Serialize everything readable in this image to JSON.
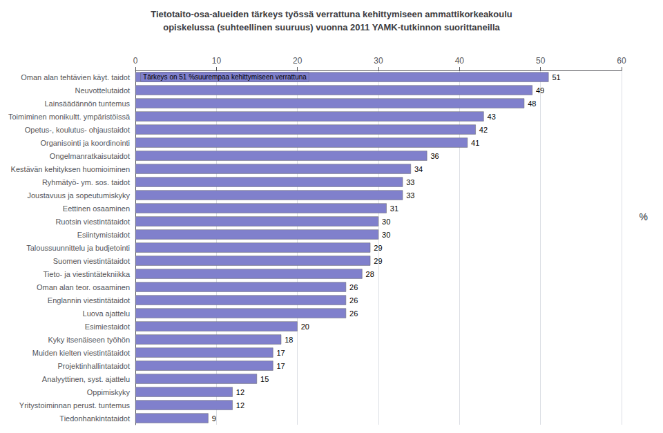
{
  "chart_data": {
    "type": "bar",
    "orientation": "horizontal",
    "title": "Tietotaito-osa-alueiden tärkeys työssä verrattuna kehittymiseen ammattikorkeakoulu\nopiskelussa (suhteellinen suuruus) vuonna 2011 YAMK-tutkinnon suorittaneilla",
    "categories": [
      "Oman alan tehtävien käyt. taidot",
      "Neuvottelutaidot",
      "Lainsäädännön tuntemus",
      "Toimiminen monikultt. ympäristöissä",
      "Opetus-, koulutus- ohjaustaidot",
      "Organisointi ja koordinointi",
      "Ongelmanratkaisutaidot",
      "Kestävän kehityksen huomioiminen",
      "Ryhmätyö- ym. sos. taidot",
      "Joustavuus ja sopeutumiskyky",
      "Eettinen osaaminen",
      "Ruotsin viestintätaidot",
      "Esiintymistaidot",
      "Taloussuunnittelu ja budjetointi",
      "Suomen viestintätaidot",
      "Tieto- ja viestintätekniikka",
      "Oman alan teor. osaaminen",
      "Englannin viestintätaidot",
      "Luova ajattelu",
      "Esimiestaidot",
      "Kyky itsenäiseen työhön",
      "Muiden kielten viestintätaidot",
      "Projektinhallintataidot",
      "Analyyttinen, syst. ajattelu",
      "Oppimiskyky",
      "Yritystoiminnan perust. tuntemus",
      "Tiedonhankintataidot"
    ],
    "values": [
      51,
      49,
      48,
      43,
      42,
      41,
      36,
      34,
      33,
      33,
      31,
      30,
      30,
      29,
      29,
      28,
      26,
      26,
      26,
      20,
      18,
      17,
      17,
      15,
      12,
      12,
      9
    ],
    "color": "#8080cc",
    "annotations": [
      "Tärkeys on 51 %suurempaa kehittymiseen verrattuna",
      "%"
    ],
    "xlim": [
      0,
      60
    ],
    "xticks": [
      0,
      10,
      20,
      30,
      40,
      50,
      60
    ],
    "grid": true,
    "data_labels": true
  }
}
